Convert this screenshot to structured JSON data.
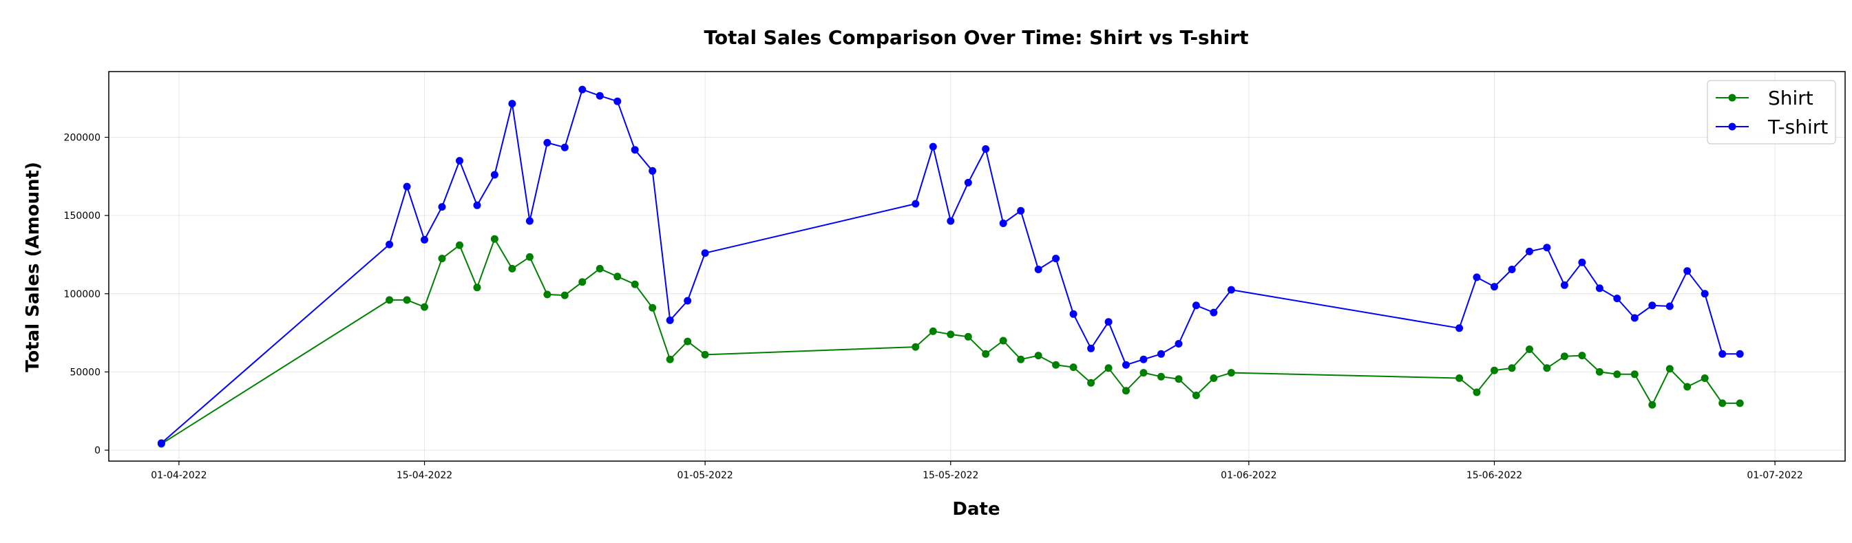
{
  "chart_data": {
    "type": "line",
    "title": "Total Sales Comparison Over Time: Shirt vs T-shirt",
    "xlabel": "Date",
    "ylabel": "Total Sales (Amount)",
    "xlim": [
      "2022-03-28",
      "2022-07-05"
    ],
    "ylim": [
      -7000,
      242000
    ],
    "x_ticks": [
      "2022-04-01",
      "2022-04-15",
      "2022-05-01",
      "2022-05-15",
      "2022-06-01",
      "2022-06-15",
      "2022-07-01"
    ],
    "x_tick_labels": [
      "01-04-2022",
      "15-04-2022",
      "01-05-2022",
      "15-05-2022",
      "01-06-2022",
      "15-06-2022",
      "01-07-2022"
    ],
    "y_ticks": [
      0,
      50000,
      100000,
      150000,
      200000
    ],
    "y_tick_labels": [
      "0",
      "50000",
      "100000",
      "150000",
      "200000"
    ],
    "grid": true,
    "legend_position": "top-right",
    "x": [
      "2022-03-31",
      "2022-04-13",
      "2022-04-14",
      "2022-04-15",
      "2022-04-16",
      "2022-04-17",
      "2022-04-18",
      "2022-04-19",
      "2022-04-20",
      "2022-04-21",
      "2022-04-22",
      "2022-04-23",
      "2022-04-24",
      "2022-04-25",
      "2022-04-26",
      "2022-04-27",
      "2022-04-28",
      "2022-04-29",
      "2022-04-30",
      "2022-05-01",
      "2022-05-13",
      "2022-05-14",
      "2022-05-15",
      "2022-05-16",
      "2022-05-17",
      "2022-05-18",
      "2022-05-19",
      "2022-05-20",
      "2022-05-21",
      "2022-05-22",
      "2022-05-23",
      "2022-05-24",
      "2022-05-25",
      "2022-05-26",
      "2022-05-27",
      "2022-05-28",
      "2022-05-29",
      "2022-05-30",
      "2022-05-31",
      "2022-06-13",
      "2022-06-14",
      "2022-06-15",
      "2022-06-16",
      "2022-06-17",
      "2022-06-18",
      "2022-06-19",
      "2022-06-20",
      "2022-06-21",
      "2022-06-22",
      "2022-06-23",
      "2022-06-24",
      "2022-06-25",
      "2022-06-26",
      "2022-06-27",
      "2022-06-28",
      "2022-06-29"
    ],
    "series": [
      {
        "name": "Shirt",
        "color": "#008000",
        "values": [
          4000,
          96000,
          96000,
          91500,
          122500,
          131000,
          104000,
          135000,
          116000,
          123500,
          99500,
          99000,
          107500,
          116000,
          111000,
          106000,
          91000,
          58000,
          69500,
          61000,
          66000,
          76000,
          74000,
          72500,
          61500,
          70000,
          58000,
          60500,
          54500,
          53000,
          43000,
          52500,
          38000,
          49500,
          47000,
          45500,
          35000,
          46000,
          49500,
          46000,
          37000,
          51000,
          52500,
          64500,
          52500,
          60000,
          60500,
          50000,
          48500,
          48500,
          29000,
          52000,
          40500,
          46000,
          30000,
          30000
        ],
        "x_override": null
      },
      {
        "name": "T-shirt",
        "color": "#0000ff",
        "values": [
          4500,
          131500,
          168500,
          134500,
          155500,
          185000,
          156500,
          176000,
          221500,
          146500,
          196500,
          193500,
          230500,
          226500,
          223000,
          192000,
          178500,
          83000,
          95500,
          126000,
          157500,
          194000,
          146500,
          171000,
          192500,
          145000,
          153000,
          115500,
          122500,
          87000,
          65000,
          82000,
          54500,
          58000,
          61500,
          68000,
          92500,
          88000,
          102500,
          78000,
          110500,
          104500,
          115500,
          127000,
          129500,
          105500,
          120000,
          103500,
          97000,
          84500,
          92500,
          92000,
          114500,
          100000,
          61500,
          61500
        ]
      }
    ]
  }
}
